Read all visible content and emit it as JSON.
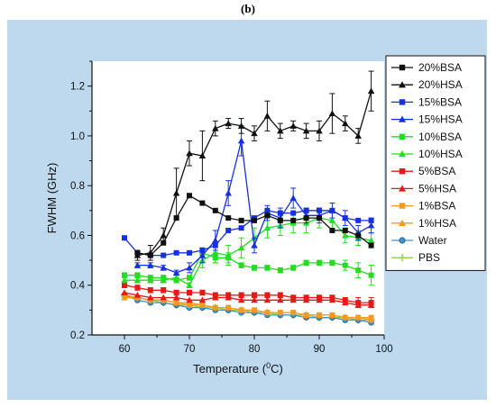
{
  "panel_label": "(b)",
  "chart_data": {
    "type": "line",
    "title": "",
    "xlabel_main": "Temperature (",
    "xlabel_sup": "0",
    "xlabel_tail": "C)",
    "ylabel": "FWHM (GHz)",
    "xlim": [
      55,
      100
    ],
    "ylim": [
      0.2,
      1.3
    ],
    "xticks": [
      60,
      70,
      80,
      90,
      100
    ],
    "yticks": [
      0.2,
      0.4,
      0.6,
      0.8,
      1.0,
      1.2
    ],
    "ytick_labels": [
      "0.2",
      "0.4",
      "0.6",
      "0.8",
      "1.0",
      "1.2"
    ],
    "grid": false,
    "legend_position": "right",
    "colors": {
      "plot_background": "#ffffff",
      "frame_background": "#bed8ee",
      "axis": "#111111"
    },
    "series": [
      {
        "name": "20%BSA",
        "color": "#111111",
        "marker": "square",
        "x": [
          62,
          64,
          66,
          68,
          70,
          72,
          74,
          76,
          78,
          80,
          82,
          84,
          86,
          88,
          90,
          92,
          94,
          96,
          98
        ],
        "y": [
          0.53,
          0.52,
          0.57,
          0.67,
          0.76,
          0.73,
          0.7,
          0.67,
          0.66,
          0.66,
          0.68,
          0.66,
          0.66,
          0.67,
          0.67,
          0.62,
          0.62,
          0.6,
          0.56
        ]
      },
      {
        "name": "20%HSA",
        "color": "#111111",
        "marker": "triangle",
        "x": [
          62,
          64,
          66,
          68,
          70,
          72,
          74,
          76,
          78,
          80,
          82,
          84,
          86,
          88,
          90,
          92,
          94,
          96,
          98
        ],
        "y": [
          0.52,
          0.53,
          0.6,
          0.77,
          0.93,
          0.92,
          1.03,
          1.05,
          1.04,
          1.01,
          1.08,
          1.02,
          1.04,
          1.02,
          1.02,
          1.09,
          1.05,
          1.0,
          1.18
        ],
        "err": [
          0.02,
          0.03,
          0.03,
          0.1,
          0.05,
          0.1,
          0.03,
          0.02,
          0.03,
          0.03,
          0.06,
          0.03,
          0.02,
          0.03,
          0.04,
          0.08,
          0.03,
          0.03,
          0.08
        ]
      },
      {
        "name": "15%BSA",
        "color": "#1630e0",
        "marker": "square",
        "x": [
          60,
          62,
          64,
          66,
          68,
          70,
          72,
          74,
          76,
          78,
          80,
          82,
          84,
          86,
          88,
          90,
          92,
          94,
          96,
          98
        ],
        "y": [
          0.59,
          0.53,
          0.52,
          0.52,
          0.53,
          0.53,
          0.54,
          0.56,
          0.62,
          0.63,
          0.67,
          0.7,
          0.69,
          0.69,
          0.7,
          0.7,
          0.7,
          0.67,
          0.66,
          0.66
        ]
      },
      {
        "name": "15%HSA",
        "color": "#1630e0",
        "marker": "triangle",
        "x": [
          62,
          64,
          66,
          68,
          70,
          72,
          74,
          76,
          78,
          80,
          82,
          84,
          86,
          88,
          90,
          92,
          94,
          96,
          98
        ],
        "y": [
          0.48,
          0.48,
          0.47,
          0.45,
          0.47,
          0.52,
          0.58,
          0.77,
          0.98,
          0.56,
          0.69,
          0.67,
          0.75,
          0.68,
          0.68,
          0.7,
          0.67,
          0.61,
          0.64
        ],
        "err": [
          0.01,
          0.01,
          0.01,
          0.01,
          0.02,
          0.03,
          0.04,
          0.05,
          0.06,
          0.03,
          0.03,
          0.04,
          0.04,
          0.03,
          0.03,
          0.03,
          0.03,
          0.03,
          0.03
        ]
      },
      {
        "name": "10%BSA",
        "color": "#22dd22",
        "marker": "square",
        "x": [
          60,
          62,
          64,
          66,
          68,
          70,
          72,
          74,
          76,
          78,
          80,
          82,
          84,
          86,
          88,
          90,
          92,
          94,
          96,
          98
        ],
        "y": [
          0.44,
          0.44,
          0.43,
          0.43,
          0.42,
          0.43,
          0.53,
          0.51,
          0.51,
          0.48,
          0.47,
          0.47,
          0.46,
          0.47,
          0.49,
          0.49,
          0.49,
          0.48,
          0.46,
          0.44
        ],
        "err": [
          0.01,
          0.01,
          0.01,
          0.01,
          0.01,
          0.01,
          0.02,
          0.02,
          0.02,
          0.01,
          0.01,
          0.01,
          0.01,
          0.01,
          0.01,
          0.01,
          0.01,
          0.02,
          0.03,
          0.04
        ]
      },
      {
        "name": "10%HSA",
        "color": "#22dd22",
        "marker": "triangle",
        "x": [
          60,
          62,
          64,
          66,
          68,
          70,
          72,
          74,
          76,
          78,
          80,
          82,
          84,
          86,
          88,
          90,
          92,
          94,
          96,
          98
        ],
        "y": [
          0.42,
          0.42,
          0.42,
          0.42,
          0.43,
          0.4,
          0.5,
          0.53,
          0.52,
          0.55,
          0.59,
          0.63,
          0.64,
          0.65,
          0.65,
          0.67,
          0.66,
          0.6,
          0.59,
          0.58
        ],
        "err": [
          0.01,
          0.01,
          0.01,
          0.01,
          0.01,
          0.01,
          0.03,
          0.04,
          0.04,
          0.04,
          0.04,
          0.04,
          0.04,
          0.04,
          0.04,
          0.04,
          0.04,
          0.03,
          0.03,
          0.03
        ]
      },
      {
        "name": "5%BSA",
        "color": "#e81818",
        "marker": "square",
        "x": [
          60,
          62,
          64,
          66,
          68,
          70,
          72,
          74,
          76,
          78,
          80,
          82,
          84,
          86,
          88,
          90,
          92,
          94,
          96,
          98
        ],
        "y": [
          0.4,
          0.39,
          0.38,
          0.38,
          0.37,
          0.37,
          0.37,
          0.36,
          0.36,
          0.36,
          0.36,
          0.36,
          0.36,
          0.35,
          0.35,
          0.35,
          0.35,
          0.34,
          0.33,
          0.33
        ],
        "err": [
          0.01,
          0.01,
          0.01,
          0.01,
          0.01,
          0.01,
          0.01,
          0.01,
          0.01,
          0.01,
          0.01,
          0.01,
          0.01,
          0.01,
          0.01,
          0.01,
          0.01,
          0.01,
          0.02,
          0.02
        ]
      },
      {
        "name": "5%HSA",
        "color": "#e81818",
        "marker": "triangle",
        "x": [
          60,
          62,
          64,
          66,
          68,
          70,
          72,
          74,
          76,
          78,
          80,
          82,
          84,
          86,
          88,
          90,
          92,
          94,
          96,
          98
        ],
        "y": [
          0.37,
          0.36,
          0.35,
          0.35,
          0.35,
          0.34,
          0.34,
          0.35,
          0.35,
          0.34,
          0.34,
          0.34,
          0.34,
          0.34,
          0.34,
          0.34,
          0.34,
          0.33,
          0.32,
          0.32
        ]
      },
      {
        "name": "1%BSA",
        "color": "#f39a22",
        "marker": "square",
        "x": [
          60,
          62,
          64,
          66,
          68,
          70,
          72,
          74,
          76,
          78,
          80,
          82,
          84,
          86,
          88,
          90,
          92,
          94,
          96,
          98
        ],
        "y": [
          0.36,
          0.35,
          0.34,
          0.34,
          0.33,
          0.32,
          0.32,
          0.31,
          0.31,
          0.3,
          0.3,
          0.29,
          0.29,
          0.29,
          0.28,
          0.28,
          0.28,
          0.27,
          0.27,
          0.27
        ]
      },
      {
        "name": "1%HSA",
        "color": "#f39a22",
        "marker": "triangle",
        "x": [
          60,
          62,
          64,
          66,
          68,
          70,
          72,
          74,
          76,
          78,
          80,
          82,
          84,
          86,
          88,
          90,
          92,
          94,
          96,
          98
        ],
        "y": [
          0.35,
          0.35,
          0.34,
          0.34,
          0.33,
          0.33,
          0.32,
          0.31,
          0.31,
          0.3,
          0.3,
          0.29,
          0.29,
          0.29,
          0.28,
          0.28,
          0.28,
          0.27,
          0.27,
          0.26
        ]
      },
      {
        "name": "Water",
        "color": "#3f93c8",
        "marker": "circle",
        "x": [
          60,
          62,
          64,
          66,
          68,
          70,
          72,
          74,
          76,
          78,
          80,
          82,
          84,
          86,
          88,
          90,
          92,
          94,
          96,
          98
        ],
        "y": [
          0.36,
          0.34,
          0.33,
          0.33,
          0.32,
          0.31,
          0.31,
          0.3,
          0.3,
          0.29,
          0.29,
          0.28,
          0.28,
          0.28,
          0.27,
          0.27,
          0.27,
          0.26,
          0.26,
          0.25
        ]
      },
      {
        "name": "PBS",
        "color": "#8fcf4a",
        "marker": "plus",
        "x": [
          60,
          62,
          64,
          66,
          68,
          70,
          72,
          74,
          76,
          78,
          80,
          82,
          84,
          86,
          88,
          90,
          92,
          94,
          96,
          98
        ],
        "y": [
          0.36,
          0.35,
          0.34,
          0.33,
          0.32,
          0.32,
          0.31,
          0.31,
          0.3,
          0.3,
          0.29,
          0.29,
          0.28,
          0.28,
          0.28,
          0.27,
          0.27,
          0.27,
          0.26,
          0.26
        ]
      }
    ]
  }
}
